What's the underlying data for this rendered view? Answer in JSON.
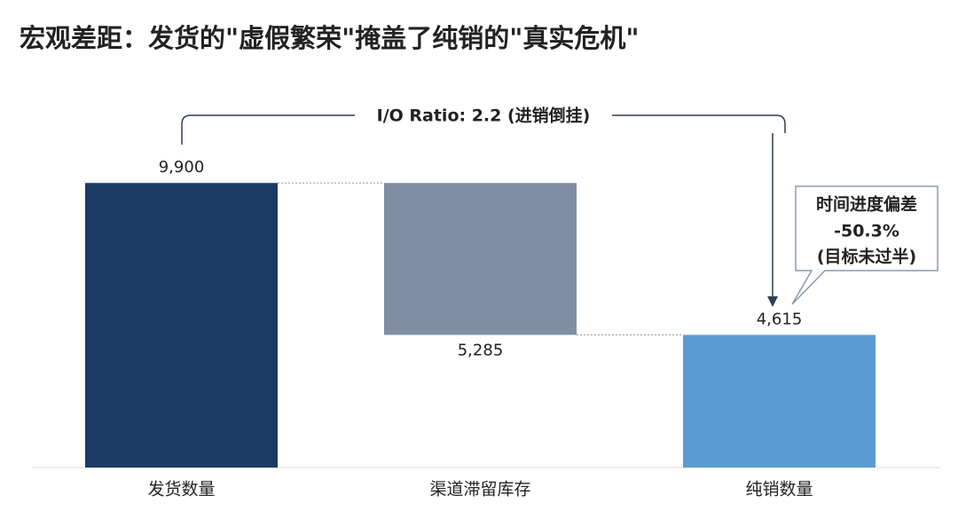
{
  "chart_data": {
    "type": "waterfall",
    "title": "宏观差距：发货的\"虚假繁荣\"掩盖了纯销的\"真实危机\"",
    "categories": [
      "发货数量",
      "渠道滞留库存",
      "纯销数量"
    ],
    "values": [
      9900,
      -5285,
      4615
    ],
    "value_labels": [
      "9,900",
      "5,285",
      "4,615"
    ],
    "measure": [
      "absolute",
      "relative",
      "total"
    ],
    "colors": [
      "#1b3a64",
      "#7f8fa3",
      "#5b9bd3"
    ],
    "ylim": [
      0,
      10000
    ],
    "bracket_label": "I/O Ratio: 2.2 (进销倒挂)",
    "callout": [
      "时间进度偏差",
      "-50.3%",
      "(目标未过半)"
    ]
  }
}
